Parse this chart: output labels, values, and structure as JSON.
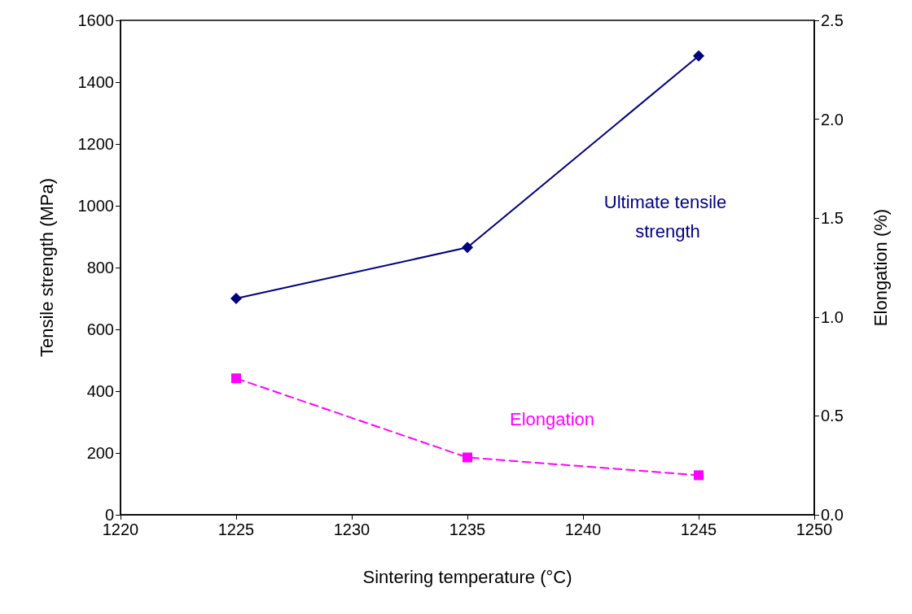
{
  "chart_data": {
    "type": "line",
    "xlabel": "Sintering temperature (°C)",
    "ylabel": "Tensile strength (MPa)",
    "y2label": "Elongation (%)",
    "xlim": [
      1220,
      1250
    ],
    "xticks": [
      1220,
      1225,
      1230,
      1235,
      1240,
      1245,
      1250
    ],
    "ylim": [
      0,
      1600
    ],
    "yticks": [
      0,
      200,
      400,
      600,
      800,
      1000,
      1200,
      1400,
      1600
    ],
    "y2lim": [
      0,
      2.5
    ],
    "y2ticks": [
      {
        "value": 0,
        "label": "0.0"
      },
      {
        "value": 0.5,
        "label": "0.5"
      },
      {
        "value": 1,
        "label": "1.0"
      },
      {
        "value": 1.5,
        "label": "1.5"
      },
      {
        "value": 2,
        "label": "2.0"
      },
      {
        "value": 2.5,
        "label": "2.5"
      }
    ],
    "grid": false,
    "series": [
      {
        "name": "Ultimate tensile strength",
        "x": [
          1225,
          1235,
          1245
        ],
        "values": [
          700,
          865,
          1485
        ],
        "color": "#000080",
        "marker": "diamond",
        "line_style": "solid"
      },
      {
        "name": "Elongation",
        "x": [
          1225,
          1235,
          1245
        ],
        "values": [
          0.69,
          0.29,
          0.2
        ],
        "color": "#ff00ff",
        "marker": "square",
        "line_style": "dashed",
        "axis": "y2"
      }
    ]
  }
}
